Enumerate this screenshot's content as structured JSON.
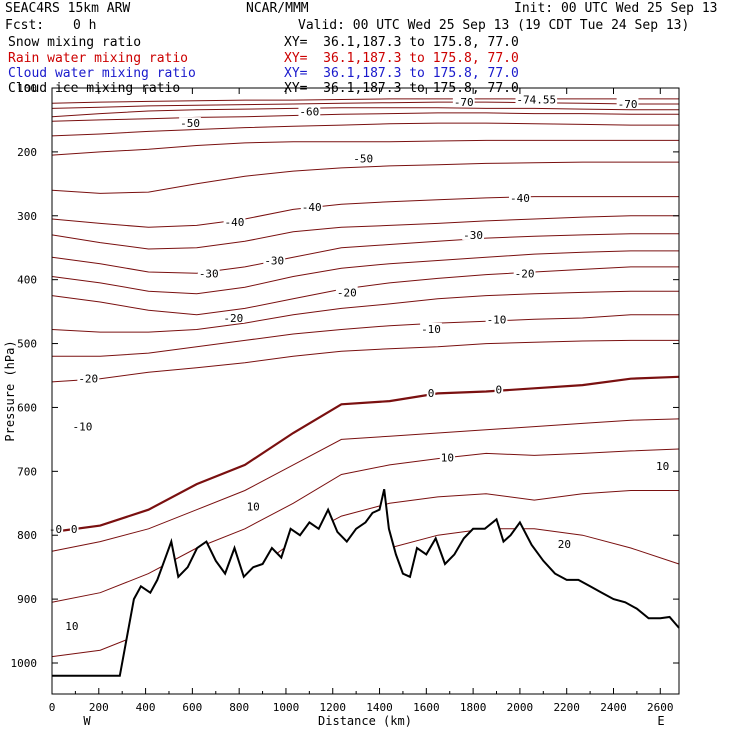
{
  "header": {
    "model": "SEAC4RS 15km ARW",
    "center": "NCAR/MMM",
    "init": "Init: 00 UTC Wed 25 Sep 13",
    "fcst_label": "Fcst:",
    "fcst_value": "0 h",
    "valid": "Valid: 00 UTC Wed 25 Sep 13 (19 CDT Tue 24 Sep 13)",
    "fields": [
      {
        "name": "Snow mixing ratio",
        "xy": "XY=  36.1,187.3 to 175.8, 77.0",
        "color": "#000000"
      },
      {
        "name": "Rain water mixing ratio",
        "xy": "XY=  36.1,187.3 to 175.8, 77.0",
        "color": "#cc0000"
      },
      {
        "name": "Cloud water mixing ratio",
        "xy": "XY=  36.1,187.3 to 175.8, 77.0",
        "color": "#1a1acc"
      },
      {
        "name": "Cloud ice mixing ratio",
        "xy": "XY=  36.1,187.3 to 175.8, 77.0",
        "color": "#000000"
      }
    ]
  },
  "chart_data": {
    "type": "line",
    "description_kind": "cross-section contour",
    "xlabel": "Distance (km)",
    "ylabel": "Pressure (hPa)",
    "xlim": [
      0,
      2680
    ],
    "ylim": [
      1050,
      100
    ],
    "x_ticks": [
      "0",
      "200",
      "400",
      "600",
      "800",
      "1000",
      "1200",
      "1400",
      "1600",
      "1800",
      "2000",
      "2200",
      "2400",
      "2600"
    ],
    "y_ticks": [
      "100",
      "200",
      "300",
      "400",
      "500",
      "600",
      "700",
      "800",
      "900",
      "1000"
    ],
    "x_end_labels": {
      "left": "W",
      "right": "E"
    },
    "contour_color": "#7a1010",
    "terrain_color": "#000000",
    "contour_labels": [
      {
        "text": "-74.55",
        "x": 2070,
        "p": 118
      },
      {
        "text": "-70",
        "x": 1760,
        "p": 122
      },
      {
        "text": "-70",
        "x": 2460,
        "p": 125
      },
      {
        "text": "-60",
        "x": 1100,
        "p": 137
      },
      {
        "text": "-50",
        "x": 590,
        "p": 155
      },
      {
        "text": "-50",
        "x": 1330,
        "p": 210
      },
      {
        "text": "-40",
        "x": 1110,
        "p": 286
      },
      {
        "text": "-40",
        "x": 2000,
        "p": 272
      },
      {
        "text": "-40",
        "x": 780,
        "p": 310
      },
      {
        "text": "-30",
        "x": 1800,
        "p": 330
      },
      {
        "text": "-30",
        "x": 950,
        "p": 370
      },
      {
        "text": "-30",
        "x": 670,
        "p": 390
      },
      {
        "text": "-20",
        "x": 2020,
        "p": 390
      },
      {
        "text": "-20",
        "x": 1260,
        "p": 420
      },
      {
        "text": "-20",
        "x": 775,
        "p": 460
      },
      {
        "text": "-20",
        "x": 155,
        "p": 555
      },
      {
        "text": "-10",
        "x": 1900,
        "p": 462
      },
      {
        "text": "-10",
        "x": 1620,
        "p": 477
      },
      {
        "text": "-10",
        "x": 130,
        "p": 630
      },
      {
        "text": "0",
        "x": 1620,
        "p": 577
      },
      {
        "text": "0",
        "x": 1910,
        "p": 572
      },
      {
        "text": "0",
        "x": 95,
        "p": 790
      },
      {
        "text": "-0",
        "x": 15,
        "p": 790
      },
      {
        "text": "10",
        "x": 1690,
        "p": 678
      },
      {
        "text": "10",
        "x": 860,
        "p": 755
      },
      {
        "text": "10",
        "x": 2610,
        "p": 692
      },
      {
        "text": "10",
        "x": 85,
        "p": 942
      },
      {
        "text": "20",
        "x": 2190,
        "p": 814
      }
    ],
    "terrain": {
      "x": [
        0,
        290,
        350,
        380,
        420,
        450,
        480,
        510,
        540,
        580,
        620,
        660,
        700,
        740,
        780,
        820,
        860,
        900,
        940,
        980,
        1020,
        1060,
        1100,
        1140,
        1180,
        1220,
        1260,
        1300,
        1340,
        1370,
        1400,
        1420,
        1440,
        1470,
        1500,
        1530,
        1560,
        1600,
        1640,
        1680,
        1720,
        1760,
        1800,
        1850,
        1900,
        1930,
        1960,
        2000,
        2050,
        2100,
        2150,
        2200,
        2250,
        2300,
        2350,
        2400,
        2450,
        2500,
        2550,
        2600,
        2640,
        2680
      ],
      "p": [
        1020,
        1020,
        900,
        880,
        890,
        870,
        840,
        810,
        865,
        850,
        820,
        810,
        840,
        860,
        820,
        865,
        850,
        845,
        820,
        835,
        790,
        800,
        780,
        790,
        760,
        795,
        810,
        790,
        780,
        765,
        760,
        728,
        790,
        830,
        860,
        865,
        820,
        830,
        805,
        845,
        830,
        805,
        790,
        790,
        775,
        810,
        800,
        780,
        815,
        840,
        860,
        870,
        870,
        880,
        890,
        900,
        905,
        915,
        930,
        930,
        928,
        945
      ]
    },
    "contours": [
      {
        "level": -74.55,
        "p": [
          124,
          122,
          121,
          120,
          119,
          119,
          118,
          117,
          117,
          117,
          117,
          117,
          117,
          117
        ]
      },
      {
        "level": -70,
        "p": [
          132,
          130,
          128,
          127,
          126,
          125,
          124,
          123,
          122,
          122,
          123,
          124,
          125,
          125
        ]
      },
      {
        "level": -65,
        "p": [
          145,
          140,
          136,
          134,
          133,
          132,
          131,
          131,
          131,
          132,
          132,
          133,
          134,
          134
        ]
      },
      {
        "level": -60,
        "p": [
          152,
          150,
          148,
          146,
          145,
          143,
          141,
          140,
          139,
          139,
          140,
          140,
          141,
          141
        ]
      },
      {
        "level": -55,
        "p": [
          175,
          172,
          168,
          165,
          162,
          160,
          158,
          156,
          155,
          155,
          156,
          157,
          158,
          158
        ]
      },
      {
        "level": -50,
        "p": [
          205,
          200,
          196,
          190,
          186,
          184,
          184,
          184,
          183,
          182,
          182,
          182,
          182,
          182
        ]
      },
      {
        "level": -45,
        "p": [
          260,
          265,
          263,
          250,
          238,
          230,
          225,
          222,
          220,
          218,
          217,
          216,
          216,
          216
        ]
      },
      {
        "level": -40,
        "p": [
          305,
          312,
          318,
          315,
          305,
          290,
          282,
          278,
          275,
          272,
          270,
          270,
          270,
          270
        ]
      },
      {
        "level": -35,
        "p": [
          330,
          342,
          352,
          350,
          340,
          325,
          318,
          315,
          312,
          308,
          305,
          302,
          300,
          300
        ]
      },
      {
        "level": -30,
        "p": [
          365,
          375,
          388,
          390,
          380,
          365,
          350,
          345,
          340,
          335,
          332,
          330,
          328,
          328
        ]
      },
      {
        "level": -25,
        "p": [
          395,
          405,
          418,
          422,
          412,
          395,
          382,
          375,
          370,
          365,
          360,
          357,
          355,
          355
        ]
      },
      {
        "level": -20,
        "p": [
          425,
          435,
          448,
          455,
          445,
          430,
          415,
          405,
          398,
          392,
          388,
          384,
          380,
          380
        ]
      },
      {
        "level": -15,
        "p": [
          478,
          482,
          482,
          478,
          468,
          455,
          445,
          438,
          430,
          425,
          422,
          420,
          418,
          418
        ]
      },
      {
        "level": -10,
        "p": [
          520,
          520,
          515,
          505,
          495,
          485,
          478,
          472,
          468,
          465,
          462,
          460,
          455,
          455
        ]
      },
      {
        "level": -5,
        "p": [
          560,
          555,
          545,
          538,
          530,
          520,
          512,
          508,
          505,
          500,
          498,
          496,
          495,
          495
        ]
      },
      {
        "level": 0,
        "p": [
          795,
          785,
          760,
          720,
          690,
          640,
          595,
          590,
          578,
          575,
          570,
          565,
          555,
          552
        ]
      },
      {
        "level": 5,
        "p": [
          825,
          810,
          790,
          760,
          730,
          690,
          650,
          645,
          640,
          635,
          630,
          625,
          620,
          618
        ]
      },
      {
        "level": 10,
        "p": [
          905,
          890,
          860,
          820,
          790,
          750,
          705,
          690,
          680,
          672,
          675,
          672,
          668,
          665
        ]
      },
      {
        "level": 15,
        "p": [
          990,
          980,
          950,
          900,
          865,
          810,
          770,
          750,
          740,
          735,
          745,
          735,
          730,
          730
        ]
      },
      {
        "level": 20,
        "p": [
          1040,
          1040,
          1020,
          980,
          940,
          900,
          850,
          820,
          800,
          790,
          790,
          800,
          820,
          845
        ]
      }
    ]
  }
}
